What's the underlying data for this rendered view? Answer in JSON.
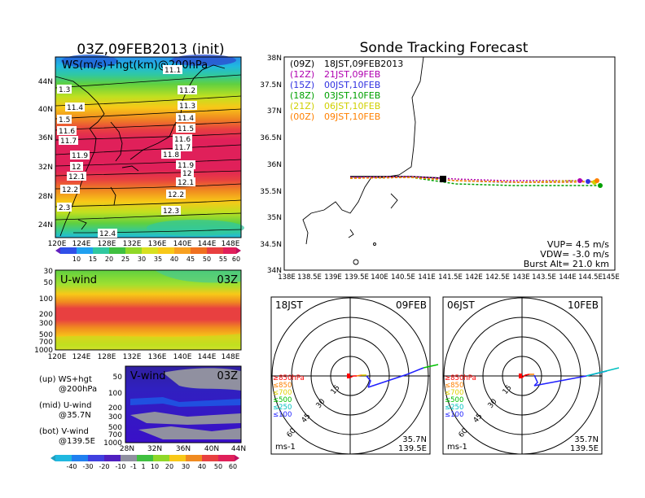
{
  "titles": {
    "left": "03Z,09FEB2013 (init)",
    "right": "Sonde Tracking Forecast"
  },
  "ws_panel": {
    "label": "WS(m/s)+hgt(km)@200hPa",
    "xticks": [
      "120E",
      "124E",
      "128E",
      "132E",
      "136E",
      "140E",
      "144E",
      "148E"
    ],
    "yticks": [
      "44N",
      "40N",
      "36N",
      "32N",
      "28N",
      "24N"
    ],
    "contour_labels": [
      "1.3",
      "11.4",
      "1.5",
      "11.6",
      "11.7",
      "11.9",
      "12",
      "12.1",
      "12.2",
      "2.3",
      "12.4",
      "11.1",
      "11.2",
      "11.3",
      "11.4",
      "11.5",
      "11.6",
      "11.7",
      "11.8",
      "11.9",
      "12",
      "12.1",
      "12.2",
      "12.3"
    ],
    "colorbar": [
      "10",
      "15",
      "20",
      "25",
      "30",
      "35",
      "40",
      "45",
      "50",
      "55",
      "60"
    ]
  },
  "u_panel": {
    "label": "U-wind",
    "time": "03Z",
    "yticks": [
      "30",
      "50",
      "100",
      "200",
      "300",
      "500",
      "700",
      "1000"
    ],
    "xticks": [
      "120E",
      "124E",
      "128E",
      "132E",
      "136E",
      "140E",
      "144E",
      "148E"
    ]
  },
  "v_panel": {
    "label": "V-wind",
    "time": "03Z",
    "yticks": [
      "50",
      "100",
      "200",
      "300",
      "500",
      "700",
      "1000"
    ],
    "xticks": [
      "28N",
      "32N",
      "36N",
      "40N",
      "44N"
    ]
  },
  "legend_notes": {
    "up1": "(up) WS+hgt",
    "up2": "@200hPa",
    "mid1": "(mid) U-wind",
    "mid2": "@35.7N",
    "bot1": "(bot) V-wind",
    "bot2": "@139.5E"
  },
  "bottom_colorbar": [
    "-40",
    "-30",
    "-20",
    "-10",
    "-1",
    "1",
    "10",
    "20",
    "30",
    "40",
    "50",
    "60"
  ],
  "track_panel": {
    "yticks": [
      "38N",
      "37.5N",
      "37N",
      "36.5N",
      "36N",
      "35.5N",
      "35N",
      "34.5N",
      "34N"
    ],
    "xticks": [
      "138E",
      "138.5E",
      "139E",
      "139.5E",
      "140E",
      "140.5E",
      "141E",
      "141.5E",
      "142E",
      "142.5E",
      "143E",
      "143.5E",
      "144E",
      "144.5E",
      "145E"
    ],
    "legend": [
      {
        "code": "(09Z)",
        "text": "18JST,09FEB2013",
        "color": "#000000"
      },
      {
        "code": "(12Z)",
        "text": "21JST,09FEB",
        "color": "#b000b0"
      },
      {
        "code": "(15Z)",
        "text": "00JST,10FEB",
        "color": "#3030e0"
      },
      {
        "code": "(18Z)",
        "text": "03JST,10FEB",
        "color": "#00a000"
      },
      {
        "code": "(21Z)",
        "text": "06JST,10FEB",
        "color": "#d0d000"
      },
      {
        "code": "(00Z)",
        "text": "09JST,10FEB",
        "color": "#ff8000"
      }
    ],
    "params": [
      "VUP= 4.5 m/s",
      "VDW= -3.0 m/s",
      "Burst Alt= 21.0 km"
    ]
  },
  "polar_left": {
    "time": "18JST",
    "date": "09FEB",
    "rings": [
      "15",
      "30",
      "45",
      "60"
    ],
    "levels": [
      {
        "text": "≥850hPa",
        "color": "#ff0000"
      },
      {
        "text": "≤850",
        "color": "#ff8000"
      },
      {
        "text": "≤700",
        "color": "#e0d000"
      },
      {
        "text": "≤500",
        "color": "#00c000"
      },
      {
        "text": "≤250",
        "color": "#00c0c0"
      },
      {
        "text": "≤100",
        "color": "#2020ff"
      }
    ],
    "units": "ms-1",
    "loc1": "35.7N",
    "loc2": "139.5E"
  },
  "polar_right": {
    "time": "06JST",
    "date": "10FEB",
    "rings": [
      "15",
      "30",
      "45",
      "60"
    ],
    "levels": [
      {
        "text": "≥850hPa",
        "color": "#ff0000"
      },
      {
        "text": "≤850",
        "color": "#ff8000"
      },
      {
        "text": "≤700",
        "color": "#e0d000"
      },
      {
        "text": "≤500",
        "color": "#00c000"
      },
      {
        "text": "≤250",
        "color": "#00c0c0"
      },
      {
        "text": "≤100",
        "color": "#2020ff"
      }
    ],
    "units": "ms-1",
    "loc1": "35.7N",
    "loc2": "139.5E"
  }
}
